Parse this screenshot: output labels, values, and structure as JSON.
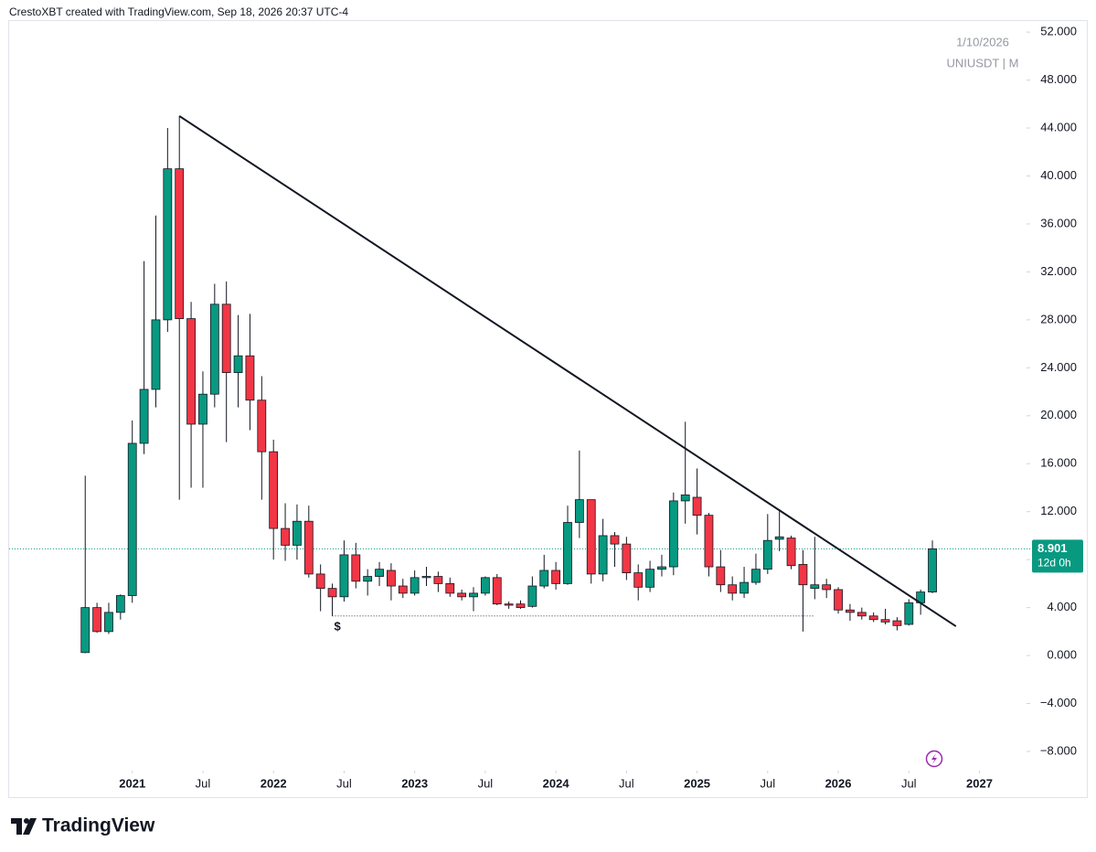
{
  "header": "CrestoXBT created with TradingView.com, Sep 18, 2026 20:37 UTC-4",
  "footer": "TradingView",
  "chart_data": {
    "type": "candlestick",
    "symbol": "UNIUSDT | M",
    "date_label": "1/10/2026",
    "x": [
      "2020-09",
      "2020-10",
      "2020-11",
      "2020-12",
      "2021-01",
      "2021-02",
      "2021-03",
      "2021-04",
      "2021-05",
      "2021-06",
      "2021-07",
      "2021-08",
      "2021-09",
      "2021-10",
      "2021-11",
      "2021-12",
      "2022-01",
      "2022-02",
      "2022-03",
      "2022-04",
      "2022-05",
      "2022-06",
      "2022-07",
      "2022-08",
      "2022-09",
      "2022-10",
      "2022-11",
      "2022-12",
      "2023-01",
      "2023-02",
      "2023-03",
      "2023-04",
      "2023-05",
      "2023-06",
      "2023-07",
      "2023-08",
      "2023-09",
      "2023-10",
      "2023-11",
      "2023-12",
      "2024-01",
      "2024-02",
      "2024-03",
      "2024-04",
      "2024-05",
      "2024-06",
      "2024-07",
      "2024-08",
      "2024-09",
      "2024-10",
      "2024-11",
      "2024-12",
      "2025-01",
      "2025-02",
      "2025-03",
      "2025-04",
      "2025-05",
      "2025-06",
      "2025-07",
      "2025-08",
      "2025-09",
      "2025-10",
      "2025-11",
      "2025-12",
      "2026-01",
      "2026-02",
      "2026-03",
      "2026-04",
      "2026-05",
      "2026-06",
      "2026-07",
      "2026-08",
      "2026-09"
    ],
    "open": [
      0.25,
      4.0,
      2.0,
      3.6,
      5.0,
      17.7,
      22.2,
      28.0,
      40.6,
      28.1,
      19.3,
      21.8,
      29.3,
      23.6,
      25.0,
      21.3,
      17.0,
      10.6,
      9.2,
      11.2,
      6.8,
      5.6,
      4.9,
      8.4,
      6.2,
      6.6,
      7.1,
      5.8,
      5.2,
      6.5,
      6.6,
      6.0,
      5.2,
      4.9,
      5.2,
      6.5,
      4.3,
      4.3,
      4.1,
      5.8,
      7.1,
      6.0,
      11.1,
      13.0,
      6.8,
      10.0,
      9.3,
      6.9,
      5.7,
      7.2,
      7.4,
      12.9,
      13.2,
      11.7,
      7.4,
      5.9,
      5.2,
      6.1,
      7.2,
      9.7,
      9.8,
      7.6,
      5.6,
      5.9,
      5.5,
      3.8,
      3.6,
      3.3,
      3.0,
      2.9,
      2.6,
      4.4,
      5.3
    ],
    "high": [
      15.0,
      4.4,
      4.4,
      5.1,
      19.6,
      32.9,
      36.7,
      44.0,
      45.0,
      29.5,
      23.7,
      31.0,
      31.2,
      28.4,
      28.5,
      23.3,
      18.0,
      12.7,
      12.6,
      12.5,
      7.6,
      6.0,
      9.6,
      9.4,
      7.2,
      7.8,
      7.7,
      6.4,
      7.1,
      7.4,
      7.0,
      6.5,
      5.5,
      5.7,
      6.6,
      6.8,
      4.5,
      4.6,
      6.6,
      8.4,
      7.8,
      12.5,
      17.1,
      13.0,
      11.4,
      10.3,
      9.9,
      7.6,
      7.9,
      8.4,
      13.6,
      19.5,
      15.6,
      11.9,
      8.8,
      6.6,
      7.4,
      8.5,
      11.8,
      12.2,
      10.0,
      8.8,
      9.9,
      6.4,
      5.7,
      4.3,
      4.0,
      3.6,
      3.9,
      3.2,
      4.7,
      5.5,
      9.6
    ],
    "low": [
      0.2,
      1.9,
      1.8,
      3.0,
      4.4,
      16.8,
      20.7,
      27.0,
      13.0,
      14.0,
      14.0,
      20.7,
      17.8,
      20.7,
      18.8,
      13.0,
      8.0,
      7.9,
      8.0,
      6.5,
      3.7,
      3.3,
      4.5,
      5.6,
      5.0,
      5.8,
      4.6,
      4.8,
      5.0,
      5.8,
      5.3,
      4.9,
      4.6,
      3.7,
      5.0,
      4.2,
      3.9,
      3.9,
      4.0,
      5.6,
      5.5,
      5.9,
      9.8,
      6.0,
      6.2,
      7.4,
      6.3,
      4.6,
      5.3,
      6.6,
      6.7,
      11.0,
      10.1,
      6.6,
      5.3,
      4.6,
      4.8,
      5.9,
      6.8,
      8.7,
      7.2,
      2.0,
      4.7,
      4.8,
      3.5,
      2.9,
      3.0,
      2.8,
      2.6,
      2.1,
      2.5,
      3.4,
      5.2
    ],
    "close": [
      4.0,
      2.0,
      3.6,
      5.0,
      17.7,
      22.2,
      28.0,
      40.6,
      28.1,
      19.3,
      21.8,
      29.3,
      23.6,
      25.0,
      21.3,
      17.0,
      10.6,
      9.2,
      11.2,
      6.8,
      5.6,
      4.9,
      8.4,
      6.2,
      6.6,
      7.2,
      5.8,
      5.2,
      6.5,
      6.6,
      6.0,
      5.2,
      4.9,
      5.2,
      6.5,
      4.3,
      4.2,
      4.0,
      5.8,
      7.1,
      6.0,
      11.1,
      13.0,
      6.8,
      10.0,
      9.3,
      6.9,
      5.7,
      7.2,
      7.4,
      12.9,
      13.4,
      11.7,
      7.4,
      5.9,
      5.2,
      6.1,
      7.2,
      9.6,
      9.9,
      7.5,
      5.9,
      5.9,
      5.5,
      3.8,
      3.6,
      3.3,
      3.0,
      2.8,
      2.5,
      4.4,
      5.3,
      8.901
    ],
    "countdown": "12d 0h",
    "up_color": "#089981",
    "down_color": "#f23645",
    "line_color": "#131722",
    "grid": false,
    "xlim": [
      "2020-03",
      "2027-05"
    ],
    "ylim": [
      -9.6,
      53.0
    ],
    "xticks": [
      {
        "value": "2021-01",
        "label": "2021"
      },
      {
        "value": "2021-07",
        "label": "Jul"
      },
      {
        "value": "2022-01",
        "label": "2022"
      },
      {
        "value": "2022-07",
        "label": "Jul"
      },
      {
        "value": "2023-01",
        "label": "2023"
      },
      {
        "value": "2023-07",
        "label": "Jul"
      },
      {
        "value": "2024-01",
        "label": "2024"
      },
      {
        "value": "2024-07",
        "label": "Jul"
      },
      {
        "value": "2025-01",
        "label": "2025"
      },
      {
        "value": "2025-07",
        "label": "Jul"
      },
      {
        "value": "2026-01",
        "label": "2026"
      },
      {
        "value": "2026-07",
        "label": "Jul"
      },
      {
        "value": "2027-01",
        "label": "2027"
      }
    ],
    "yticks": [
      {
        "value": 52,
        "label": "52.000"
      },
      {
        "value": 48,
        "label": "48.000"
      },
      {
        "value": 44,
        "label": "44.000"
      },
      {
        "value": 40,
        "label": "40.000"
      },
      {
        "value": 36,
        "label": "36.000"
      },
      {
        "value": 32,
        "label": "32.000"
      },
      {
        "value": 28,
        "label": "28.000"
      },
      {
        "value": 24,
        "label": "24.000"
      },
      {
        "value": 20,
        "label": "20.000"
      },
      {
        "value": 16,
        "label": "16.000"
      },
      {
        "value": 12,
        "label": "12.000"
      },
      {
        "value": 8,
        "label": "8.000"
      },
      {
        "value": 4,
        "label": "4.000"
      },
      {
        "value": 0,
        "label": "0.000"
      },
      {
        "value": -4,
        "label": "−4.000"
      },
      {
        "value": -8,
        "label": "−8.000"
      }
    ],
    "trendline": {
      "x": [
        "2021-05",
        "2026-11"
      ],
      "y": [
        45.0,
        2.44
      ]
    },
    "support_line": {
      "x": [
        "2022-06",
        "2025-11"
      ],
      "y": 3.3,
      "label": "$"
    }
  }
}
